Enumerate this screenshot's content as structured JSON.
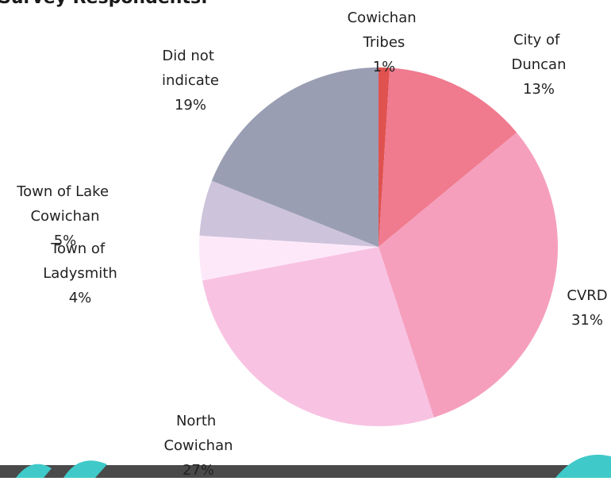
{
  "chart_data": {
    "type": "pie",
    "title": "Survey Respondents:",
    "categories": [
      "Cowichan Tribes",
      "City of Duncan",
      "CVRD",
      "North Cowichan",
      "Town of Ladysmith",
      "Town of Lake Cowichan",
      "Did not indicate"
    ],
    "values": [
      1,
      13,
      31,
      27,
      4,
      5,
      19
    ],
    "value_labels": [
      "1%",
      "13%",
      "31%",
      "27%",
      "4%",
      "5%",
      "19%"
    ],
    "colors": [
      "#e0524f",
      "#f07a8e",
      "#f59fbd",
      "#f8c2e2",
      "#fde8fa",
      "#cdc3da",
      "#9a9eb3"
    ]
  }
}
